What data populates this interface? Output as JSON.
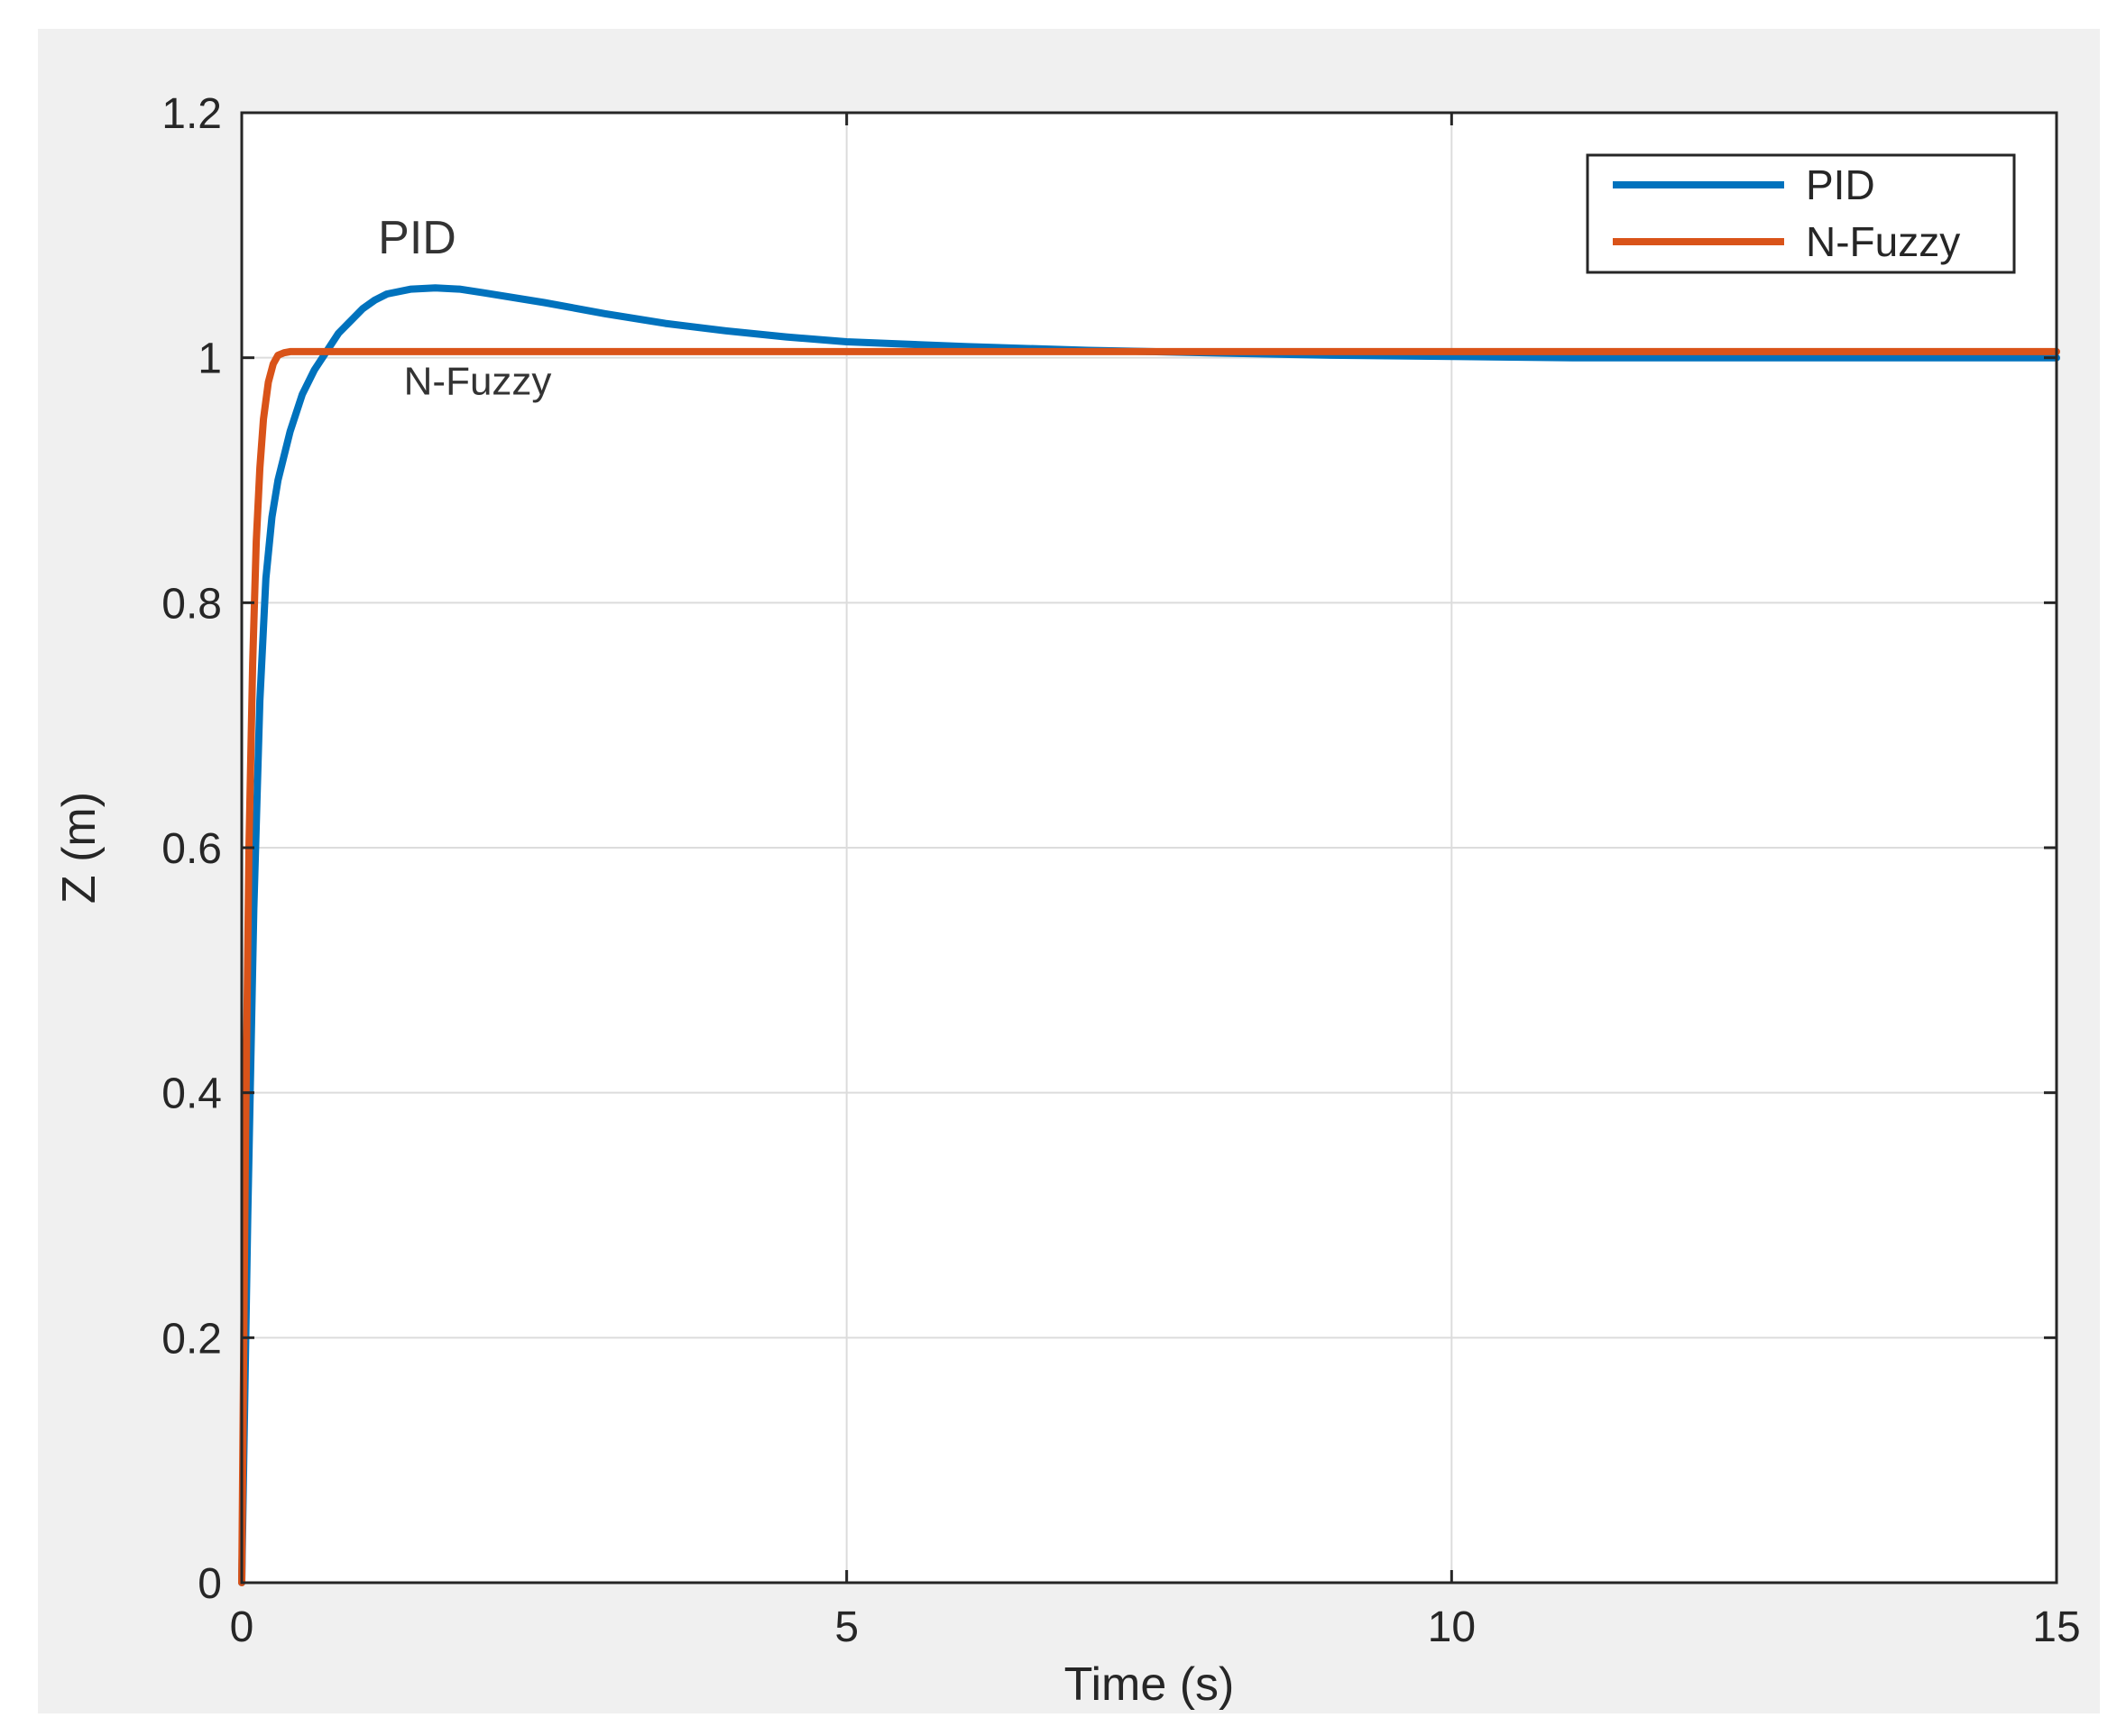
{
  "chart_data": {
    "type": "line",
    "xlabel": "Time (s)",
    "ylabel": "Z (m)",
    "xlim": [
      0,
      15
    ],
    "ylim": [
      0,
      1.2
    ],
    "xticks": [
      0,
      5,
      10,
      15
    ],
    "xtick_labels": [
      "0",
      "5",
      "10",
      "15"
    ],
    "yticks": [
      0,
      0.2,
      0.4,
      0.6,
      0.8,
      1,
      1.2
    ],
    "ytick_labels": [
      "0",
      "0.2",
      "0.4",
      "0.6",
      "0.8",
      "1",
      "1.2"
    ],
    "grid": true,
    "legend_position": "top-right",
    "series": [
      {
        "name": "PID",
        "color": "#0072bd",
        "x": [
          0,
          0.05,
          0.1,
          0.15,
          0.2,
          0.25,
          0.3,
          0.4,
          0.5,
          0.6,
          0.7,
          0.8,
          0.9,
          1.0,
          1.1,
          1.2,
          1.4,
          1.6,
          1.8,
          2.0,
          2.5,
          3.0,
          3.5,
          4.0,
          4.5,
          5.0,
          6.0,
          7.0,
          8.0,
          9.0,
          10.0,
          11.0,
          12.0,
          13.0,
          14.0,
          15.0
        ],
        "y": [
          0,
          0.3,
          0.55,
          0.72,
          0.82,
          0.87,
          0.9,
          0.94,
          0.97,
          0.99,
          1.005,
          1.02,
          1.03,
          1.04,
          1.047,
          1.052,
          1.056,
          1.057,
          1.056,
          1.053,
          1.045,
          1.036,
          1.028,
          1.022,
          1.017,
          1.013,
          1.009,
          1.006,
          1.004,
          1.002,
          1.001,
          1.0,
          1.0,
          1.0,
          1.0,
          1.0
        ]
      },
      {
        "name": "N-Fuzzy",
        "color": "#d95319",
        "x": [
          0,
          0.03,
          0.06,
          0.09,
          0.12,
          0.15,
          0.18,
          0.22,
          0.26,
          0.3,
          0.35,
          0.4,
          0.5,
          1.0,
          2.0,
          5.0,
          10.0,
          15.0
        ],
        "y": [
          0,
          0.35,
          0.6,
          0.75,
          0.85,
          0.91,
          0.95,
          0.98,
          0.995,
          1.002,
          1.004,
          1.005,
          1.005,
          1.005,
          1.005,
          1.005,
          1.005,
          1.005
        ]
      }
    ],
    "annotations": [
      {
        "text": "PID",
        "x": 1.45,
        "y": 1.085
      },
      {
        "text": "N-Fuzzy",
        "x": 1.95,
        "y": 0.97
      }
    ]
  }
}
